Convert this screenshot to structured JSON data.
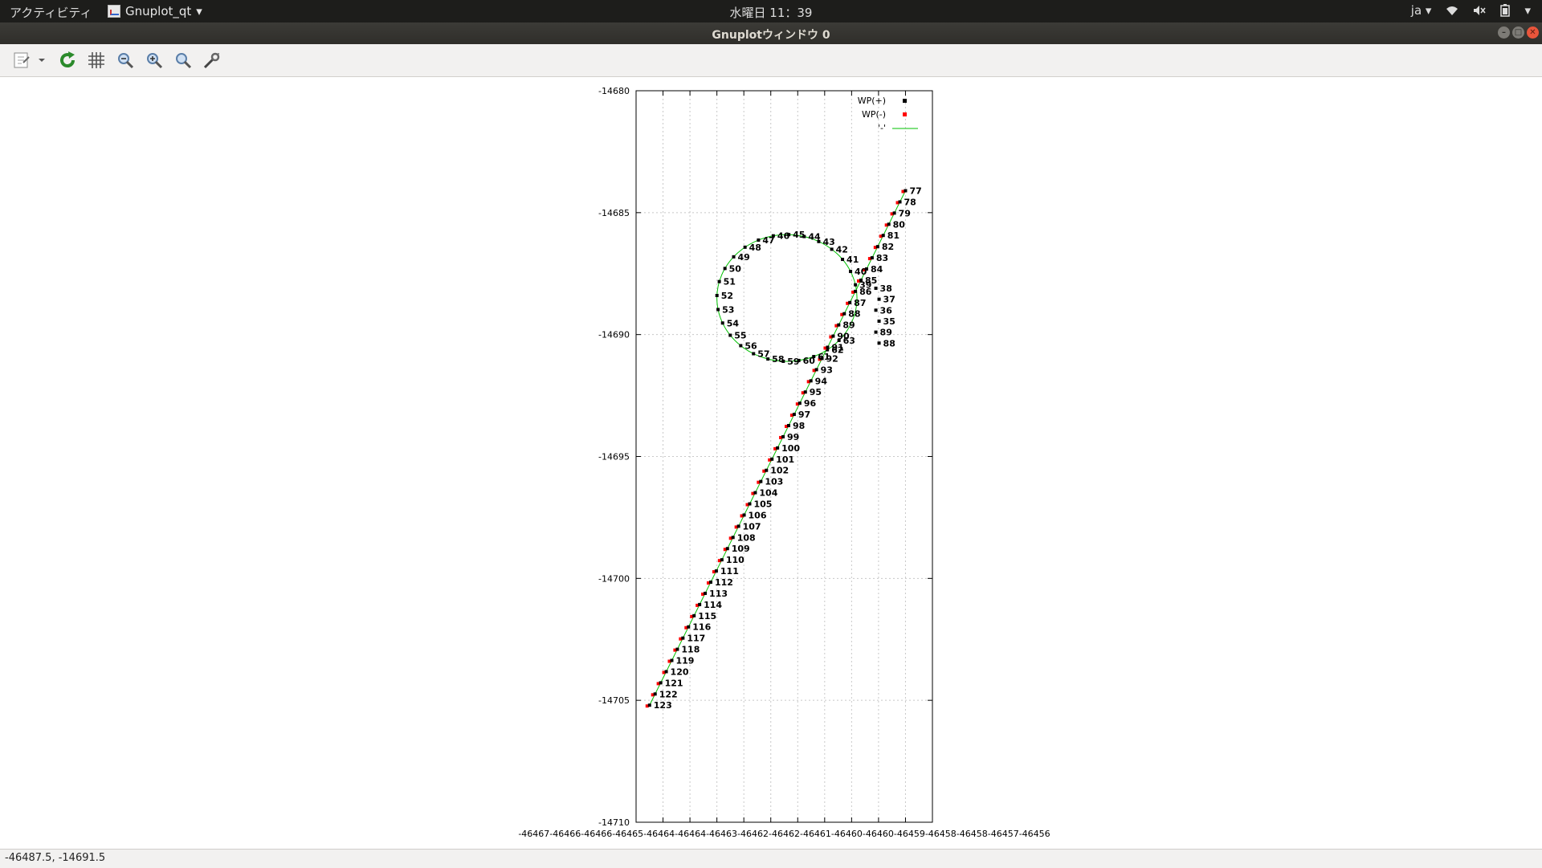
{
  "topbar": {
    "activities": "アクティビティ",
    "app_name": "Gnuplot_qt",
    "clock": "水曜日 11：39",
    "lang": "ja"
  },
  "window": {
    "title": "Gnuplotウィンドウ 0"
  },
  "toolbar": {
    "icons": [
      "copy-to-clipboard-icon",
      "dropdown-arrow-icon",
      "replot-icon",
      "grid-icon",
      "zoom-previous-icon",
      "zoom-next-icon",
      "autoscale-icon",
      "settings-icon"
    ]
  },
  "status": {
    "coords": "-46487.5, -14691.5"
  },
  "chart_data": {
    "type": "scatter",
    "title": "",
    "xlabel": "",
    "ylabel": "",
    "xlim": [
      -46467,
      -46456
    ],
    "ylim": [
      -14710,
      -14680
    ],
    "x_tick_text": "-46467-46466-46466-46465-46464-46464-46463-46462-46462-46461-46460-46460-46459-46458-46458-46457-46456",
    "y_ticks": [
      -14680,
      -14685,
      -14690,
      -14695,
      -14700,
      -14705,
      -14710
    ],
    "x_tick_positions": [
      -46466,
      -46465,
      -46464,
      -46463,
      -46462,
      -46461,
      -46460,
      -46459,
      -46458,
      -46457
    ],
    "grid": true,
    "legend_position": "top-right",
    "legend": [
      "WP(+)",
      "WP(-)",
      "'-'"
    ],
    "colors": {
      "wp_plus": "#000000",
      "wp_minus": "#ff0000",
      "line": "#00c000"
    },
    "circle": {
      "cx": -46461.4,
      "cy": -14688.5,
      "r": 2.6
    },
    "circle_labels": {
      "start": 39,
      "end": 63,
      "start_angle_deg": 12,
      "end_angle_deg": 318
    },
    "line_segment": {
      "start": [
        -46457,
        -14684.1
      ],
      "end": [
        -46466.5,
        -14705.2
      ],
      "labels_from": 77,
      "labels_to": 123
    },
    "inner_labels": [
      "38",
      "37",
      "36",
      "35",
      "89",
      "88"
    ]
  }
}
